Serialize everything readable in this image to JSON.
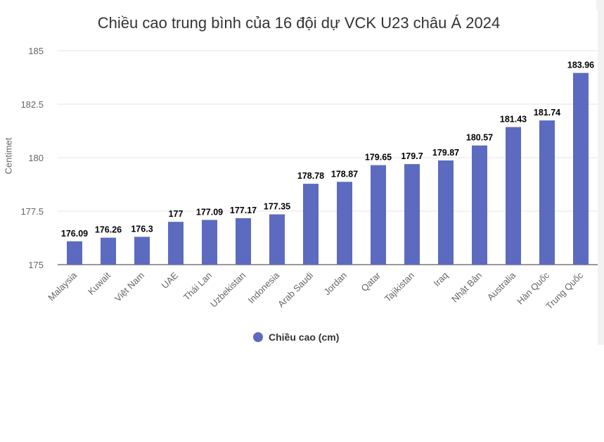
{
  "chart_data": {
    "type": "bar",
    "title": "Chiều cao trung bình của 16 đội dự VCK U23 châu Á 2024",
    "ylabel": "Centimet",
    "xlabel": "",
    "ylim": [
      175,
      185
    ],
    "yticks": [
      "175",
      "177.5",
      "180",
      "182.5",
      "185"
    ],
    "grid": true,
    "legend_position": "bottom",
    "bar_color": "#5c6bc0",
    "categories": [
      "Malaysia",
      "Kuwait",
      "Việt Nam",
      "UAE",
      "Thái Lan",
      "Uzbekistan",
      "Indonesia",
      "Arab Saudi",
      "Jordan",
      "Qatar",
      "Tajikistan",
      "Iraq",
      "Nhật Bản",
      "Australia",
      "Hàn Quốc",
      "Trung Quốc"
    ],
    "series": [
      {
        "name": "Chiều cao (cm)",
        "values": [
          176.09,
          176.26,
          176.3,
          177,
          177.09,
          177.17,
          177.35,
          178.78,
          178.87,
          179.65,
          179.7,
          179.87,
          180.57,
          181.43,
          181.74,
          183.96
        ],
        "labels": [
          "176.09",
          "176.26",
          "176.3",
          "177",
          "177.09",
          "177.17",
          "177.35",
          "178.78",
          "178.87",
          "179.65",
          "179.7",
          "179.87",
          "180.57",
          "181.43",
          "181.74",
          "183.96"
        ]
      }
    ]
  }
}
